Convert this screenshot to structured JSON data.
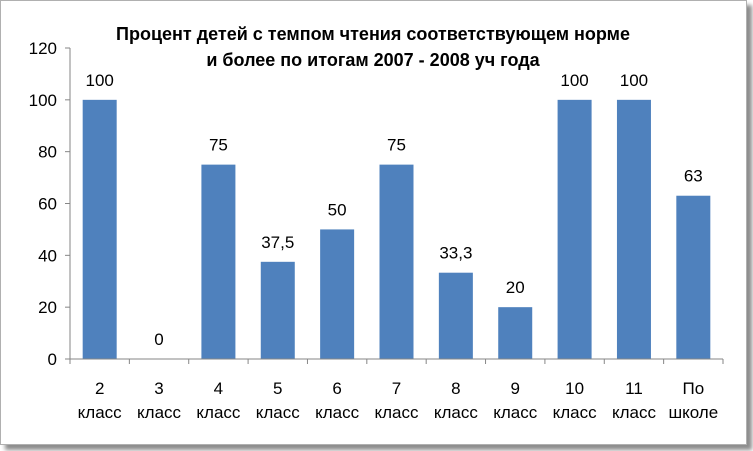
{
  "chart_data": {
    "type": "bar",
    "title_lines": [
      "Процент  детей с темпом чтения соответствующем норме",
      "и более по итогам  2007 - 2008 уч года"
    ],
    "categories": [
      [
        "2",
        "класс"
      ],
      [
        "3",
        "класс"
      ],
      [
        "4",
        "класс"
      ],
      [
        "5",
        "класс"
      ],
      [
        "6",
        "класс"
      ],
      [
        "7",
        "класс"
      ],
      [
        "8",
        "класс"
      ],
      [
        "9",
        "класс"
      ],
      [
        "10",
        "класс"
      ],
      [
        "11",
        "класс"
      ],
      [
        "По",
        "школе"
      ]
    ],
    "values": [
      100,
      0,
      75,
      37.5,
      50,
      75,
      33.3,
      20,
      100,
      100,
      63
    ],
    "data_labels": [
      "100",
      "0",
      "75",
      "37,5",
      "50",
      "75",
      "33,3",
      "20",
      "100",
      "100",
      "63"
    ],
    "yticks": [
      "0",
      "20",
      "40",
      "60",
      "80",
      "100",
      "120"
    ],
    "ylim": [
      0,
      120
    ],
    "grid": false,
    "legend": "none",
    "bar_color": "#4f81bd"
  }
}
